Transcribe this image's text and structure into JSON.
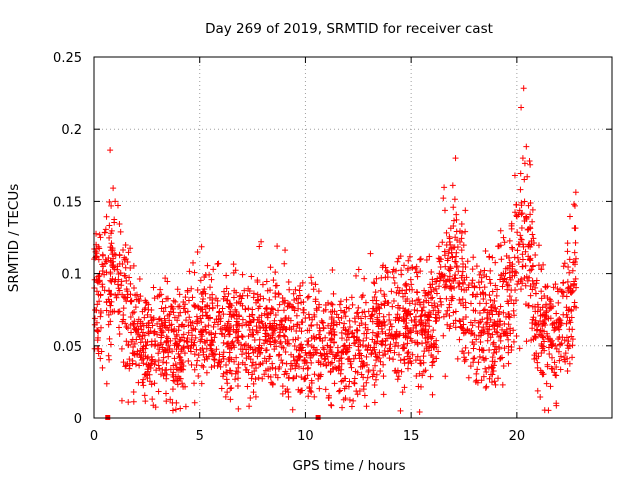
{
  "chart_data": {
    "type": "scatter",
    "title": "Day 269 of 2019, SRMTID for receiver cast",
    "xlabel": "GPS time / hours",
    "ylabel": "SRMTID / TECUs",
    "xlim": [
      0,
      24.5
    ],
    "ylim": [
      0,
      0.25
    ],
    "x_ticks": [
      0,
      5,
      10,
      15,
      20
    ],
    "x_tick_labels": [
      "0",
      "5",
      "10",
      "15",
      "20"
    ],
    "y_ticks": [
      0,
      0.05,
      0.1,
      0.15,
      0.2,
      0.25
    ],
    "y_tick_labels": [
      "0",
      "0.05",
      "0.1",
      "0.15",
      "0.2",
      "0.25"
    ],
    "grid": true,
    "marker": "plus",
    "color": "#ff0000",
    "envelope_hours": [
      0,
      0.5,
      1,
      1.5,
      2,
      2.5,
      3,
      4,
      5,
      6,
      7,
      8,
      9,
      10,
      11,
      12,
      13,
      14,
      15,
      16,
      16.5,
      17,
      17.5,
      18,
      19,
      19.5,
      20,
      20.3,
      20.7,
      21,
      22,
      22.5,
      22.8
    ],
    "envelope_mean": [
      0.085,
      0.095,
      0.11,
      0.08,
      0.065,
      0.05,
      0.05,
      0.05,
      0.065,
      0.06,
      0.055,
      0.06,
      0.06,
      0.052,
      0.05,
      0.048,
      0.055,
      0.06,
      0.07,
      0.065,
      0.09,
      0.11,
      0.08,
      0.065,
      0.065,
      0.075,
      0.12,
      0.14,
      0.1,
      0.06,
      0.055,
      0.08,
      0.09
    ],
    "notable_points": [
      {
        "x": 0.1,
        "y": 0.12
      },
      {
        "x": 1.0,
        "y": 0.15
      },
      {
        "x": 4.9,
        "y": 0.115
      },
      {
        "x": 12.2,
        "y": 0.008
      },
      {
        "x": 17.1,
        "y": 0.18
      },
      {
        "x": 20.2,
        "y": 0.215
      },
      {
        "x": 20.6,
        "y": 0.178
      },
      {
        "x": 22.7,
        "y": 0.148
      }
    ],
    "gap_markers": [
      {
        "x": 0.65,
        "y": 0
      },
      {
        "x": 10.6,
        "y": 0
      }
    ],
    "series": [
      {
        "name": "SRMTID",
        "point_count": 2600,
        "x_range": [
          0,
          22.8
        ]
      }
    ]
  }
}
